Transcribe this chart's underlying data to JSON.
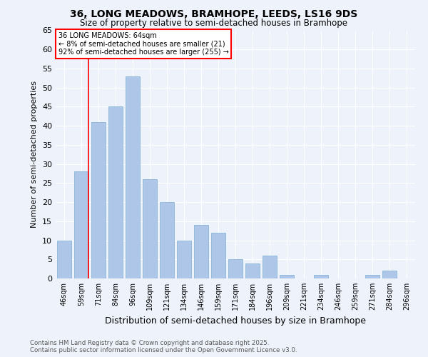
{
  "title1": "36, LONG MEADOWS, BRAMHOPE, LEEDS, LS16 9DS",
  "title2": "Size of property relative to semi-detached houses in Bramhope",
  "xlabel": "Distribution of semi-detached houses by size in Bramhope",
  "ylabel": "Number of semi-detached properties",
  "categories": [
    "46sqm",
    "59sqm",
    "71sqm",
    "84sqm",
    "96sqm",
    "109sqm",
    "121sqm",
    "134sqm",
    "146sqm",
    "159sqm",
    "171sqm",
    "184sqm",
    "196sqm",
    "209sqm",
    "221sqm",
    "234sqm",
    "246sqm",
    "259sqm",
    "271sqm",
    "284sqm",
    "296sqm"
  ],
  "values": [
    10,
    28,
    41,
    45,
    53,
    26,
    20,
    10,
    14,
    12,
    5,
    4,
    6,
    1,
    0,
    1,
    0,
    0,
    1,
    2,
    0
  ],
  "bar_color": "#aec6e8",
  "bar_edge_color": "#7aafd4",
  "annotation_title": "36 LONG MEADOWS: 64sqm",
  "annotation_line1": "← 8% of semi-detached houses are smaller (21)",
  "annotation_line2": "92% of semi-detached houses are larger (255) →",
  "footer1": "Contains HM Land Registry data © Crown copyright and database right 2025.",
  "footer2": "Contains public sector information licensed under the Open Government Licence v3.0.",
  "bg_color": "#eef2fb",
  "ylim": [
    0,
    65
  ],
  "yticks": [
    0,
    5,
    10,
    15,
    20,
    25,
    30,
    35,
    40,
    45,
    50,
    55,
    60,
    65
  ]
}
